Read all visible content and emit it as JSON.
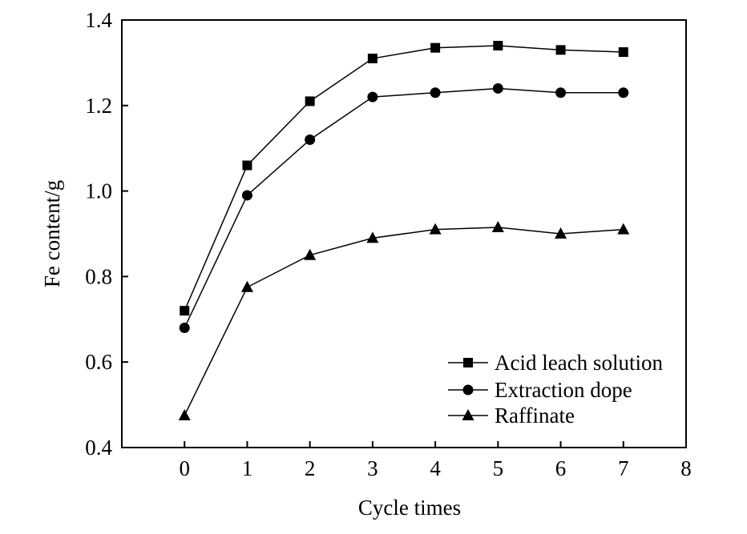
{
  "chart_data": {
    "type": "line",
    "title": "",
    "xlabel": "Cycle times",
    "ylabel": "Fe content/g",
    "xlim": [
      -1,
      8
    ],
    "ylim": [
      0.4,
      1.4
    ],
    "xticks": [
      0,
      1,
      2,
      3,
      4,
      5,
      6,
      7,
      8
    ],
    "yticks": [
      0.4,
      0.6,
      0.8,
      1.0,
      1.2,
      1.4
    ],
    "ytick_labels": [
      "0.4",
      "0.6",
      "0.8",
      "1.0",
      "1.2",
      "1.4"
    ],
    "grid": false,
    "legend_position": "lower-right",
    "series": [
      {
        "name": "Acid leach solution",
        "marker": "square",
        "x": [
          0,
          1,
          2,
          3,
          4,
          5,
          6,
          7
        ],
        "y": [
          0.72,
          1.06,
          1.21,
          1.31,
          1.335,
          1.34,
          1.33,
          1.325
        ]
      },
      {
        "name": "Extraction dope",
        "marker": "circle",
        "x": [
          0,
          1,
          2,
          3,
          4,
          5,
          6,
          7
        ],
        "y": [
          0.68,
          0.99,
          1.12,
          1.22,
          1.23,
          1.24,
          1.23,
          1.23
        ]
      },
      {
        "name": "Raffinate",
        "marker": "triangle",
        "x": [
          0,
          1,
          2,
          3,
          4,
          5,
          6,
          7
        ],
        "y": [
          0.475,
          0.775,
          0.85,
          0.89,
          0.91,
          0.915,
          0.9,
          0.91
        ]
      }
    ]
  }
}
